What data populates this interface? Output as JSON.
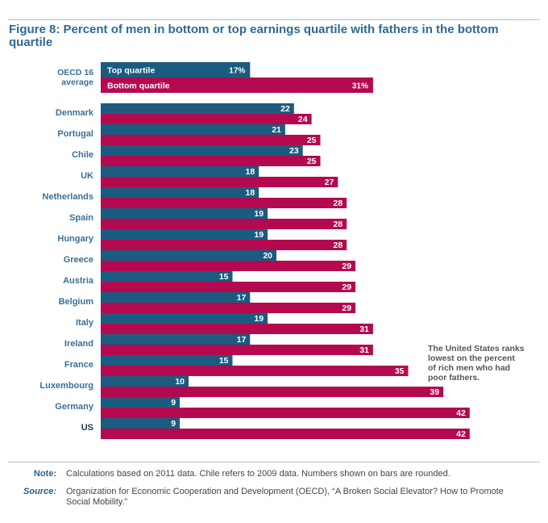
{
  "title": "Figure 8: Percent of men in bottom or top earnings quartile with fathers in the bottom quartile",
  "annotation": "The United States ranks lowest on the percent of rich men who had poor fathers.",
  "note_label": "Note:",
  "note_text": "Calculations based on 2011 data. Chile refers to 2009 data. Numbers shown on bars are rounded.",
  "source_label": "Source:",
  "source_text": "Organization for Economic Cooperation and Development (OECD), “A Broken Social Elevator? How to Promote Social Mobility.”",
  "colors": {
    "top": "#1b5b80",
    "bottom": "#b4094f",
    "label": "#3c6f95",
    "us_label": "#1d3d5a"
  },
  "chart_data": {
    "type": "bar",
    "orientation": "horizontal",
    "title": "Figure 8: Percent of men in bottom or top earnings quartile with fathers in the bottom quartile",
    "summary": {
      "category": "OECD 16 average",
      "category_lines": [
        "OECD 16",
        "average"
      ],
      "top_label": "Top quartile",
      "bottom_label": "Bottom quartile",
      "top_value": 17,
      "bottom_value": 31,
      "top_value_label": "17%",
      "bottom_value_label": "31%"
    },
    "categories": [
      "Denmark",
      "Portugal",
      "Chile",
      "UK",
      "Netherlands",
      "Spain",
      "Hungary",
      "Greece",
      "Austria",
      "Belgium",
      "Italy",
      "Ireland",
      "France",
      "Luxembourg",
      "Germany",
      "US"
    ],
    "series": [
      {
        "name": "Top quartile",
        "values": [
          22,
          21,
          23,
          18,
          18,
          19,
          19,
          20,
          15,
          17,
          19,
          17,
          15,
          10,
          9,
          9
        ]
      },
      {
        "name": "Bottom quartile",
        "values": [
          24,
          25,
          25,
          27,
          28,
          28,
          28,
          29,
          29,
          29,
          31,
          31,
          35,
          39,
          42,
          42
        ]
      }
    ],
    "xlim": [
      0,
      45
    ],
    "grid": false
  }
}
